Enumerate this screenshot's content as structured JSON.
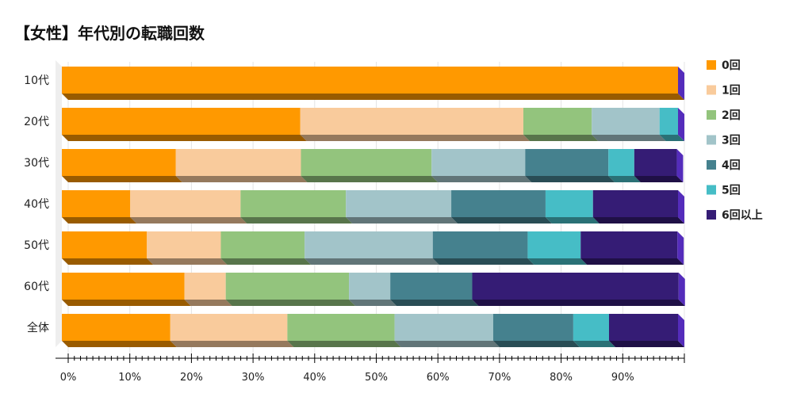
{
  "chart_data": {
    "type": "bar",
    "orientation": "horizontal",
    "stacked": true,
    "title": "【女性】年代別の転職回数",
    "categories": [
      "10代",
      "20代",
      "30代",
      "40代",
      "50代",
      "60代",
      "全体"
    ],
    "xlim": [
      0,
      100
    ],
    "xticks": [
      "0%",
      "10%",
      "20%",
      "30%",
      "40%",
      "50%",
      "60%",
      "70%",
      "80%",
      "90%"
    ],
    "grid": true,
    "legend_position": "right",
    "series": [
      {
        "name": "0回",
        "color": "#ff9900",
        "values": [
          100,
          38.7,
          18.5,
          11.1,
          13.8,
          19.9,
          17.6
        ]
      },
      {
        "name": "1回",
        "color": "#f9cb9c",
        "values": [
          0,
          36.2,
          20.3,
          17.9,
          12.0,
          6.7,
          19.0
        ]
      },
      {
        "name": "2回",
        "color": "#93c47d",
        "values": [
          0,
          11.1,
          21.2,
          17.1,
          13.6,
          20.0,
          17.4
        ]
      },
      {
        "name": "3回",
        "color": "#a2c4c9",
        "values": [
          0,
          11.0,
          15.2,
          17.1,
          20.8,
          6.7,
          16.0
        ]
      },
      {
        "name": "4回",
        "color": "#45818e",
        "values": [
          0,
          0,
          13.5,
          15.3,
          15.4,
          13.3,
          13.0
        ]
      },
      {
        "name": "5回",
        "color": "#46bdc6",
        "values": [
          0,
          3.0,
          4.2,
          7.7,
          8.6,
          0,
          5.8
        ]
      },
      {
        "name": "6回以上",
        "color": "#351c75",
        "values": [
          0,
          0,
          6.9,
          13.8,
          15.7,
          33.5,
          11.2
        ]
      }
    ]
  }
}
